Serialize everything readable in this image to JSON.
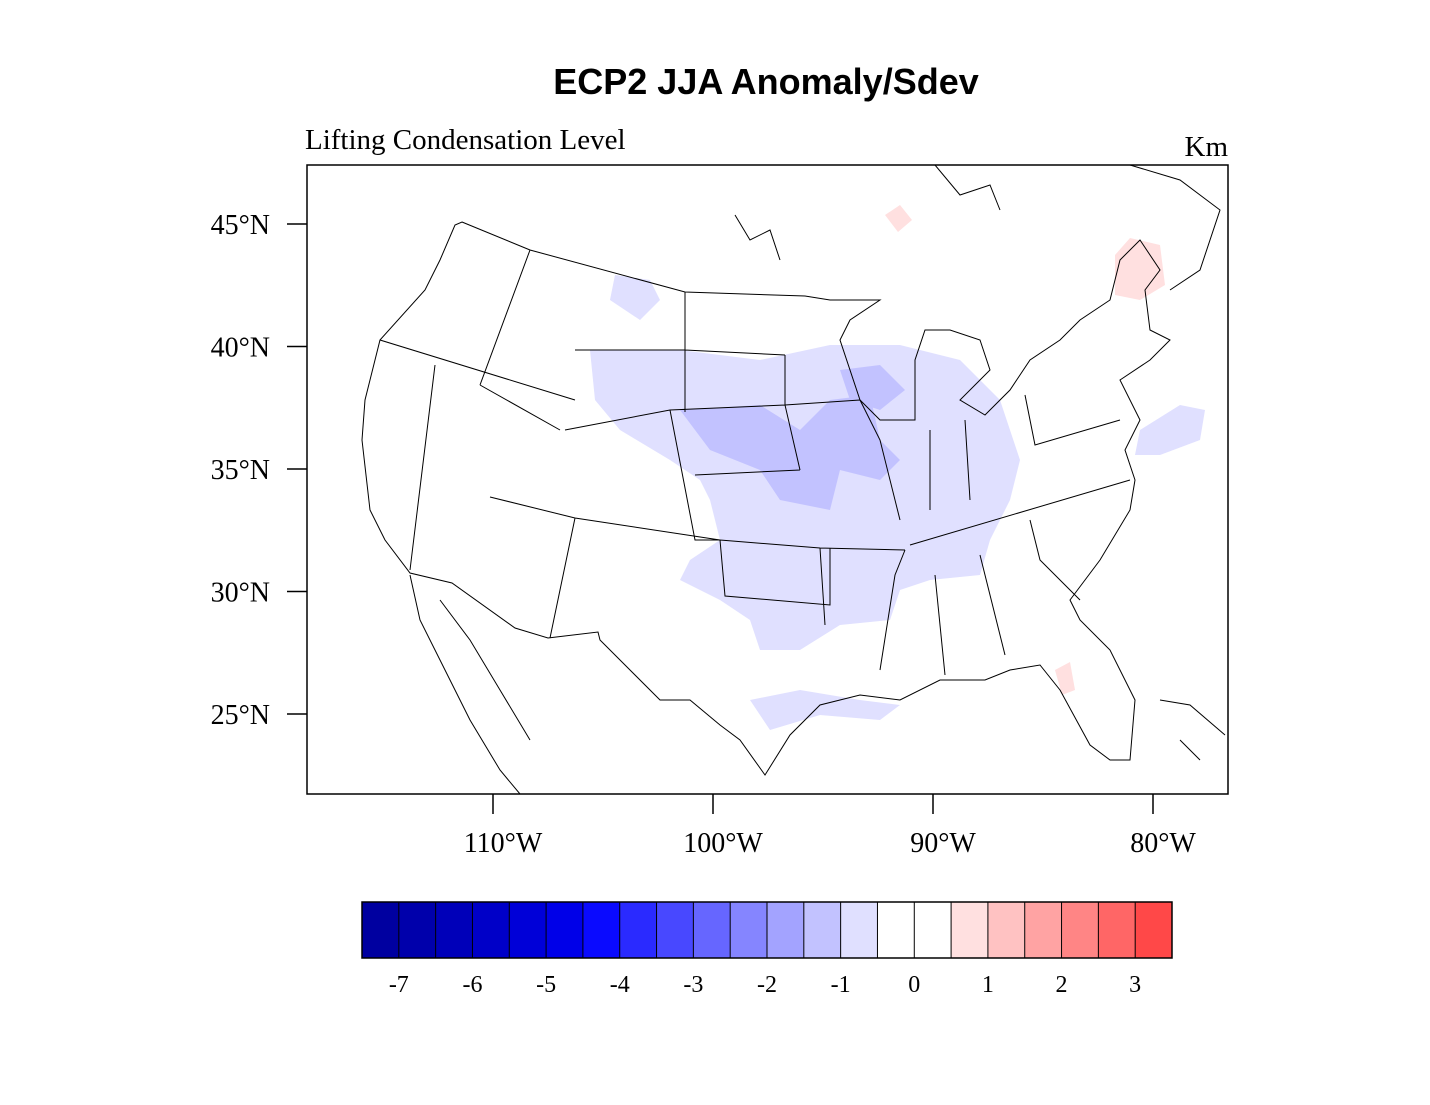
{
  "title": "ECP2 JJA Anomaly/Sdev",
  "left_label": "Lifting Condensation Level",
  "right_label": "Km",
  "map": {
    "lat_ticks": [
      {
        "value": 45,
        "label": "45°N"
      },
      {
        "value": 40,
        "label": "40°N"
      },
      {
        "value": 35,
        "label": "35°N"
      },
      {
        "value": 30,
        "label": "30°N"
      },
      {
        "value": 25,
        "label": "25°N"
      }
    ],
    "lon_ticks": [
      {
        "value": -110,
        "label": "110°W"
      },
      {
        "value": -100,
        "label": "100°W"
      },
      {
        "value": -90,
        "label": "90°W"
      },
      {
        "value": -80,
        "label": "80°W"
      }
    ]
  },
  "colorbar": {
    "levels": [
      -7,
      -6.5,
      -6,
      -5.5,
      -5,
      -4.5,
      -4,
      -3.5,
      -3,
      -2.5,
      -2,
      -1.5,
      -1,
      -0.5,
      0,
      0.5,
      1,
      1.5,
      2,
      2.5,
      3
    ],
    "labels": [
      -7,
      -6,
      -5,
      -4,
      -3,
      -2,
      -1,
      0,
      1,
      2,
      3
    ],
    "colors": [
      "#0000a0",
      "#0000ab",
      "#0000b9",
      "#0000c8",
      "#0000d8",
      "#0000e8",
      "#0a0aff",
      "#2a2aff",
      "#4848ff",
      "#6666ff",
      "#8585ff",
      "#a3a3ff",
      "#c2c2ff",
      "#e0e0ff",
      "#ffffff",
      "#ffffff",
      "#ffe0e0",
      "#ffc2c2",
      "#ffa3a3",
      "#ff8585",
      "#ff6666",
      "#ff4848"
    ]
  }
}
